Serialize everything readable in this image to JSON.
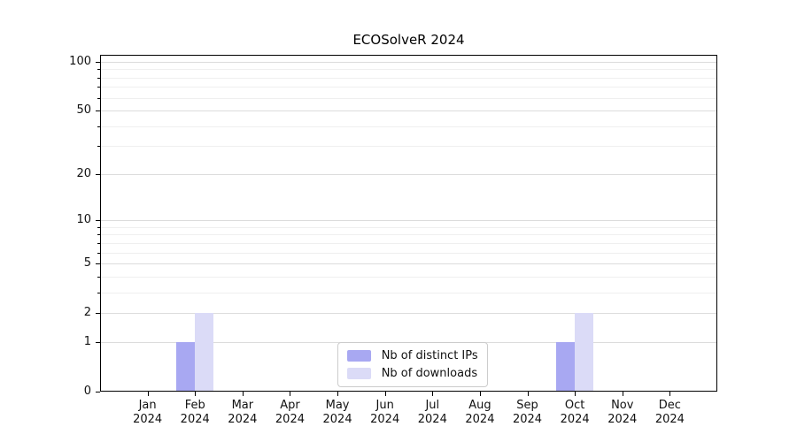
{
  "chart_data": {
    "type": "bar",
    "title": "ECOSolveR 2024",
    "xlabel": "",
    "ylabel": "",
    "yscale": "log1p",
    "ylim": [
      0,
      111
    ],
    "grid": true,
    "categories": [
      "Jan 2024",
      "Feb 2024",
      "Mar 2024",
      "Apr 2024",
      "May 2024",
      "Jun 2024",
      "Jul 2024",
      "Aug 2024",
      "Sep 2024",
      "Oct 2024",
      "Nov 2024",
      "Dec 2024"
    ],
    "series": [
      {
        "name": "Nb of distinct IPs",
        "color": "#a8a8f2",
        "values": [
          0,
          1,
          0,
          0,
          0,
          0,
          0,
          0,
          0,
          1,
          0,
          0
        ]
      },
      {
        "name": "Nb of downloads",
        "color": "#dbdbf7",
        "values": [
          0,
          2,
          0,
          0,
          0,
          0,
          0,
          0,
          0,
          2,
          0,
          0
        ]
      }
    ],
    "y_ticks": [
      0,
      1,
      2,
      5,
      10,
      20,
      50,
      100
    ],
    "y_minor_ticks": [
      3,
      4,
      6,
      7,
      8,
      9,
      30,
      40,
      60,
      70,
      80,
      90
    ],
    "legend": {
      "position": "lower center",
      "entries": [
        "Nb of distinct IPs",
        "Nb of downloads"
      ]
    }
  }
}
